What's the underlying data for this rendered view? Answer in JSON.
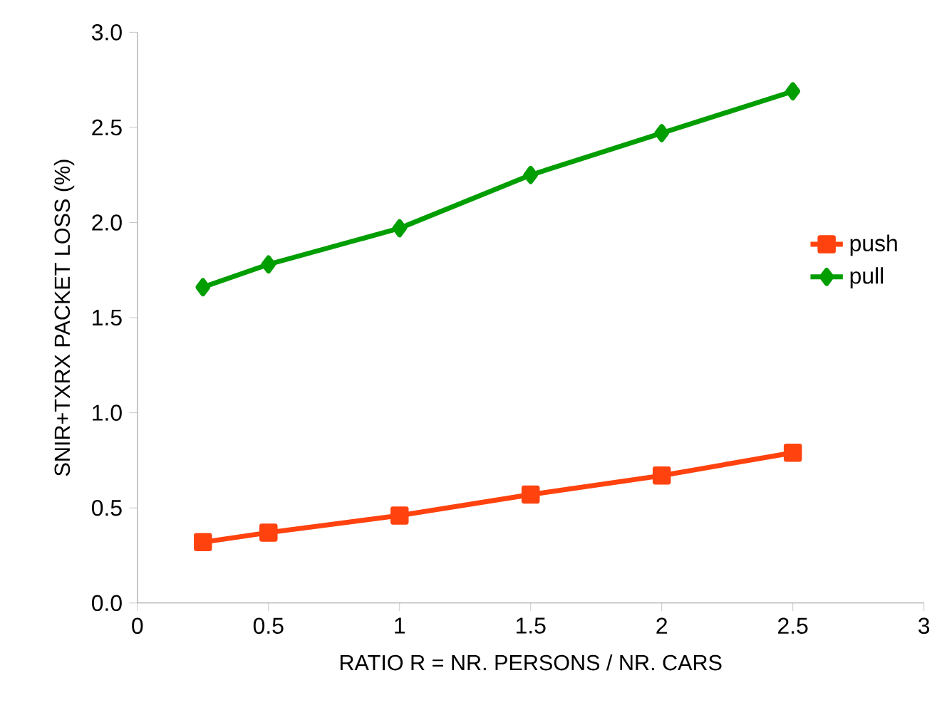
{
  "chart_data": {
    "type": "line",
    "xlabel": "RATIO R = NR. PERSONS / NR. CARS",
    "ylabel": "SNIR+TXRX  PACKET LOSS  (%)",
    "x": [
      0.25,
      0.5,
      1,
      1.5,
      2,
      2.5
    ],
    "series": [
      {
        "name": "push",
        "color": "#ff420e",
        "marker": "square",
        "values": [
          0.32,
          0.37,
          0.46,
          0.57,
          0.67,
          0.79
        ]
      },
      {
        "name": "pull",
        "color": "#009e00",
        "marker": "diamond",
        "values": [
          1.66,
          1.78,
          1.97,
          2.25,
          2.47,
          2.69
        ]
      }
    ],
    "xlim": [
      0,
      3
    ],
    "xticks": [
      0,
      0.5,
      1,
      1.5,
      2,
      2.5,
      3
    ],
    "ylim": [
      0,
      3
    ],
    "yticks": [
      {
        "value": 0,
        "label": "0.0"
      },
      0.5,
      {
        "value": 1,
        "label": "1.0"
      },
      1.5,
      {
        "value": 2,
        "label": "2.0"
      },
      2.5,
      {
        "value": 3,
        "label": "3.0"
      }
    ],
    "legend": "right",
    "grid": false,
    "line_style": "solid"
  }
}
